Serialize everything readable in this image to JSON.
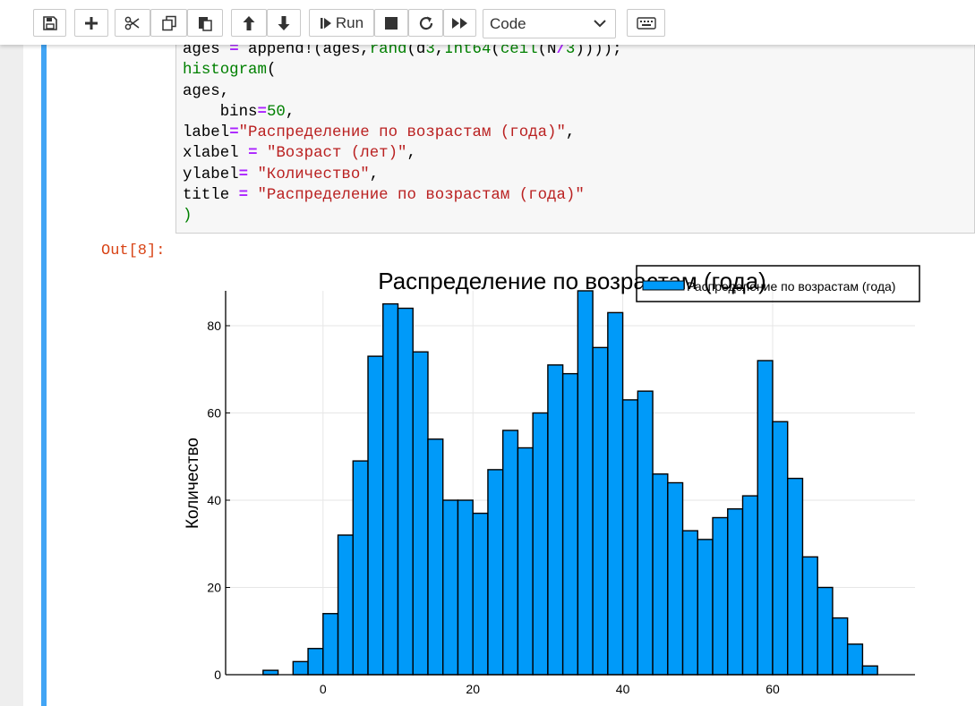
{
  "toolbar": {
    "run_label": "Run",
    "cell_type": "Code"
  },
  "code_lines": [
    "ages = append!(ages,rand(d3,Int64(ceil(N/3))));",
    "histogram(",
    "ages,",
    "    bins=50,",
    "label=\"Распределение по возрастам (года)\",",
    "xlabel = \"Возраст (лет)\",",
    "ylabel= \"Количество\",",
    "title = \"Распределение по возрастам (года)\"",
    ")"
  ],
  "output": {
    "prompt": "Out[8]:"
  },
  "chart_data": {
    "type": "bar",
    "title": "Распределение по возрастам (года)",
    "xlabel": "",
    "ylabel": "Количество",
    "legend": {
      "label": "Распределение по возрастам (года)",
      "position": "top-right"
    },
    "bin_width": 2,
    "bins": [
      {
        "start": -8,
        "count": 1
      },
      {
        "start": -6,
        "count": 0
      },
      {
        "start": -4,
        "count": 3
      },
      {
        "start": -2,
        "count": 6
      },
      {
        "start": 0,
        "count": 14
      },
      {
        "start": 2,
        "count": 32
      },
      {
        "start": 4,
        "count": 49
      },
      {
        "start": 6,
        "count": 73
      },
      {
        "start": 8,
        "count": 85
      },
      {
        "start": 10,
        "count": 84
      },
      {
        "start": 12,
        "count": 74
      },
      {
        "start": 14,
        "count": 54
      },
      {
        "start": 16,
        "count": 40
      },
      {
        "start": 18,
        "count": 40
      },
      {
        "start": 20,
        "count": 37
      },
      {
        "start": 22,
        "count": 47
      },
      {
        "start": 24,
        "count": 56
      },
      {
        "start": 26,
        "count": 52
      },
      {
        "start": 28,
        "count": 60
      },
      {
        "start": 30,
        "count": 71
      },
      {
        "start": 32,
        "count": 69
      },
      {
        "start": 34,
        "count": 88
      },
      {
        "start": 36,
        "count": 75
      },
      {
        "start": 38,
        "count": 83
      },
      {
        "start": 40,
        "count": 63
      },
      {
        "start": 42,
        "count": 65
      },
      {
        "start": 44,
        "count": 46
      },
      {
        "start": 46,
        "count": 44
      },
      {
        "start": 48,
        "count": 33
      },
      {
        "start": 50,
        "count": 31
      },
      {
        "start": 52,
        "count": 36
      },
      {
        "start": 54,
        "count": 38
      },
      {
        "start": 56,
        "count": 41
      },
      {
        "start": 58,
        "count": 72
      },
      {
        "start": 60,
        "count": 58
      },
      {
        "start": 62,
        "count": 45
      },
      {
        "start": 64,
        "count": 27
      },
      {
        "start": 66,
        "count": 20
      },
      {
        "start": 68,
        "count": 13
      },
      {
        "start": 70,
        "count": 7
      },
      {
        "start": 72,
        "count": 2
      }
    ],
    "x_ticks": [
      0,
      20,
      40,
      60
    ],
    "y_ticks": [
      0,
      20,
      40,
      60,
      80
    ],
    "xlim": [
      -13,
      79
    ],
    "ylim": [
      0,
      88
    ],
    "grid": true,
    "bar_color": "#009af9"
  }
}
